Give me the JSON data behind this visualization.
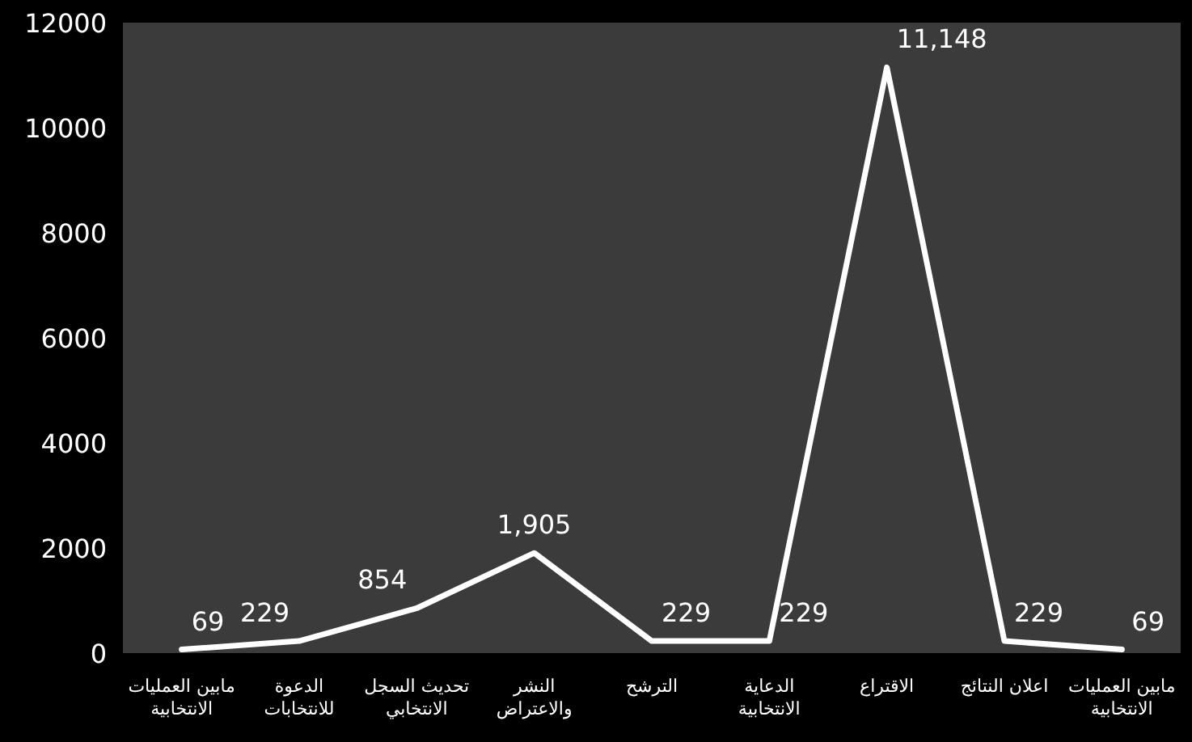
{
  "chart_data": {
    "type": "line",
    "categories": [
      "مابين العمليات الانتخابية",
      "الدعوة للانتخابات",
      "تحديث السجل الانتخابي",
      "النشر والاعتراض",
      "الترشح",
      "الدعاية الانتخابية",
      "الاقتراع",
      "اعلان النتائج",
      "مابين العمليات الانتخابية"
    ],
    "series": [
      {
        "color": "#ffffff",
        "values": [
          69,
          229,
          854,
          1905,
          229,
          229,
          11148,
          229,
          69
        ],
        "value_labels": [
          "69",
          "229",
          "854",
          "1,905",
          "229",
          "229",
          "11,148",
          "229",
          "69"
        ]
      }
    ],
    "ylim": [
      0,
      12000
    ],
    "yticks": [
      0,
      2000,
      4000,
      6000,
      8000,
      10000,
      12000
    ],
    "grid": false,
    "marker": "none",
    "line_style": "solid"
  }
}
